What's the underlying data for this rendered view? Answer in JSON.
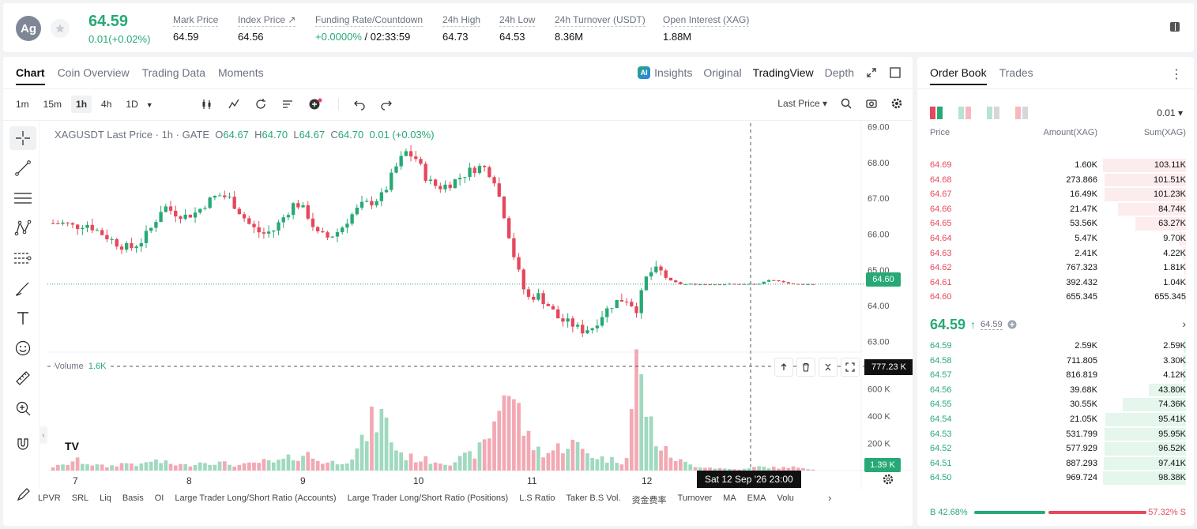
{
  "ticker": {
    "symbol_initials": "Ag",
    "last_price": "64.59",
    "change": "0.01(+0.02%)",
    "stats": [
      {
        "label": "Mark Price",
        "value": "64.59"
      },
      {
        "label": "Index Price ↗",
        "value": "64.56"
      },
      {
        "label": "Funding Rate/Countdown",
        "value_green": "+0.0000%",
        "value": " / 02:33:59"
      },
      {
        "label": "24h High",
        "value": "64.73"
      },
      {
        "label": "24h Low",
        "value": "64.53"
      },
      {
        "label": "24h Turnover (USDT)",
        "value": "8.36M"
      },
      {
        "label": "Open Interest (XAG)",
        "value": "1.88M"
      }
    ]
  },
  "chart_panel": {
    "tabs": [
      "Chart",
      "Coin Overview",
      "Trading Data",
      "Moments"
    ],
    "view_tabs": {
      "ai": "AI",
      "insights": "Insights",
      "original": "Original",
      "tradingview": "TradingView",
      "depth": "Depth"
    },
    "intervals": [
      "1m",
      "15m",
      "1h",
      "4h",
      "1D"
    ],
    "active_interval": "1h",
    "last_price_select": "Last Price ▾",
    "legend": {
      "title": "XAGUSDT Last Price · 1h · GATE",
      "o_label": "O",
      "o": "64.67",
      "h_label": "H",
      "h": "64.70",
      "l_label": "L",
      "l": "64.67",
      "c_label": "C",
      "c": "64.70",
      "change": "0.01 (+0.03%)"
    },
    "volume_legend": {
      "label": "Volume",
      "value": "1.6K"
    },
    "tv_logo": "TV",
    "current_price_tag": "64.60",
    "current_volume_tag": "1.39 K",
    "crosshair_volume": "777.23 K",
    "crosshair_time": "Sat 12 Sep '26   23:00",
    "indicators": [
      "LPVR",
      "SRL",
      "Liq",
      "Basis",
      "OI",
      "Large Trader Long/Short Ratio (Accounts)",
      "Large Trader Long/Short Ratio (Positions)",
      "L.S Ratio",
      "Taker B.S Vol.",
      "资金费率",
      "Turnover",
      "MA",
      "EMA",
      "Volu"
    ]
  },
  "chart_data": {
    "type": "candlestick",
    "symbol": "XAGUSDT",
    "interval": "1h",
    "price_ticks": [
      "69.00",
      "68.00",
      "67.00",
      "66.00",
      "65.00",
      "64.00",
      "63.00"
    ],
    "price_range": [
      62.7,
      69.1
    ],
    "volume_ticks": [
      "600 K",
      "400 K",
      "200 K"
    ],
    "volume_range": [
      0,
      800
    ],
    "x_ticks": [
      "7",
      "8",
      "9",
      "10",
      "11",
      "12"
    ],
    "close_path": [
      66.3,
      66.3,
      66.2,
      66.3,
      66.1,
      65.9,
      65.7,
      65.6,
      65.8,
      66.2,
      66.8,
      66.6,
      66.5,
      66.6,
      66.9,
      67.1,
      67.0,
      66.6,
      66.2,
      66.0,
      66.1,
      66.5,
      66.9,
      66.6,
      66.0,
      65.9,
      66.1,
      66.5,
      66.8,
      66.9,
      67.1,
      67.8,
      68.3,
      68.1,
      67.5,
      67.3,
      67.4,
      67.6,
      67.8,
      67.9,
      67.6,
      66.5,
      65.2,
      64.2,
      64.3,
      64.0,
      63.6,
      63.5,
      63.3,
      63.4,
      63.8,
      64.1,
      64.2,
      63.9,
      64.9,
      65.0,
      64.7,
      64.6,
      64.6,
      64.6,
      64.6,
      64.6,
      64.6,
      64.6,
      64.6,
      64.7,
      64.7,
      64.6,
      64.6,
      64.6
    ],
    "volume_path": [
      30,
      40,
      80,
      60,
      40,
      30,
      50,
      60,
      40,
      80,
      60,
      50,
      40,
      60,
      70,
      60,
      50,
      40,
      50,
      70,
      60,
      80,
      110,
      130,
      80,
      60,
      70,
      90,
      200,
      380,
      420,
      180,
      110,
      90,
      80,
      70,
      60,
      90,
      120,
      180,
      350,
      680,
      520,
      260,
      160,
      140,
      180,
      220,
      160,
      120,
      90,
      80,
      70,
      840,
      420,
      190,
      120,
      70,
      40,
      30,
      20,
      15,
      10,
      12,
      30,
      25,
      20,
      30,
      15,
      10
    ]
  },
  "order_book": {
    "tabs": [
      "Order Book",
      "Trades"
    ],
    "more": "⋮",
    "precision": "0.01 ▾",
    "headers": {
      "price": "Price",
      "amount": "Amount(XAG)",
      "sum": "Sum(XAG)"
    },
    "asks": [
      {
        "price": "64.69",
        "amount": "1.60K",
        "sum": "103.11K",
        "fill": 1.0
      },
      {
        "price": "64.68",
        "amount": "273.866",
        "sum": "101.51K",
        "fill": 0.98
      },
      {
        "price": "64.67",
        "amount": "16.49K",
        "sum": "101.23K",
        "fill": 0.98
      },
      {
        "price": "64.66",
        "amount": "21.47K",
        "sum": "84.74K",
        "fill": 0.82
      },
      {
        "price": "64.65",
        "amount": "53.56K",
        "sum": "63.27K",
        "fill": 0.61
      },
      {
        "price": "64.64",
        "amount": "5.47K",
        "sum": "9.70K",
        "fill": 0.09
      },
      {
        "price": "64.63",
        "amount": "2.41K",
        "sum": "4.22K",
        "fill": 0.04
      },
      {
        "price": "64.62",
        "amount": "767.323",
        "sum": "1.81K",
        "fill": 0.02
      },
      {
        "price": "64.61",
        "amount": "392.432",
        "sum": "1.04K",
        "fill": 0.01
      },
      {
        "price": "64.60",
        "amount": "655.345",
        "sum": "655.345",
        "fill": 0.006
      }
    ],
    "mid": {
      "price": "64.59",
      "arrow": "↑",
      "mark": "64.59",
      "chevron": "›"
    },
    "bids": [
      {
        "price": "64.59",
        "amount": "2.59K",
        "sum": "2.59K",
        "fill": 0.026
      },
      {
        "price": "64.58",
        "amount": "711.805",
        "sum": "3.30K",
        "fill": 0.034
      },
      {
        "price": "64.57",
        "amount": "816.819",
        "sum": "4.12K",
        "fill": 0.042
      },
      {
        "price": "64.56",
        "amount": "39.68K",
        "sum": "43.80K",
        "fill": 0.45
      },
      {
        "price": "64.55",
        "amount": "30.55K",
        "sum": "74.36K",
        "fill": 0.76
      },
      {
        "price": "64.54",
        "amount": "21.05K",
        "sum": "95.41K",
        "fill": 0.97
      },
      {
        "price": "64.53",
        "amount": "531.799",
        "sum": "95.95K",
        "fill": 0.98
      },
      {
        "price": "64.52",
        "amount": "577.929",
        "sum": "96.52K",
        "fill": 0.98
      },
      {
        "price": "64.51",
        "amount": "887.293",
        "sum": "97.41K",
        "fill": 0.99
      },
      {
        "price": "64.50",
        "amount": "969.724",
        "sum": "98.38K",
        "fill": 1.0
      }
    ],
    "ratio": {
      "buy": "B 42.68%",
      "sell": "57.32% S"
    }
  },
  "colors": {
    "up": "#27a975",
    "down": "#e5485b"
  },
  "icons": [
    "star-icon",
    "book-icon",
    "crosshair-icon",
    "trend-line-icon",
    "fib-icon",
    "pattern-icon",
    "brush-icon",
    "text-icon",
    "emoji-icon",
    "ruler-icon",
    "zoom-icon",
    "magnet-icon",
    "pencil-icon",
    "candle-icon",
    "indicator-icon",
    "replay-icon",
    "template-icon",
    "plus-alert-icon",
    "undo-icon",
    "redo-icon",
    "search-icon",
    "camera-icon",
    "gear-icon",
    "expand-icon",
    "window-icon"
  ]
}
